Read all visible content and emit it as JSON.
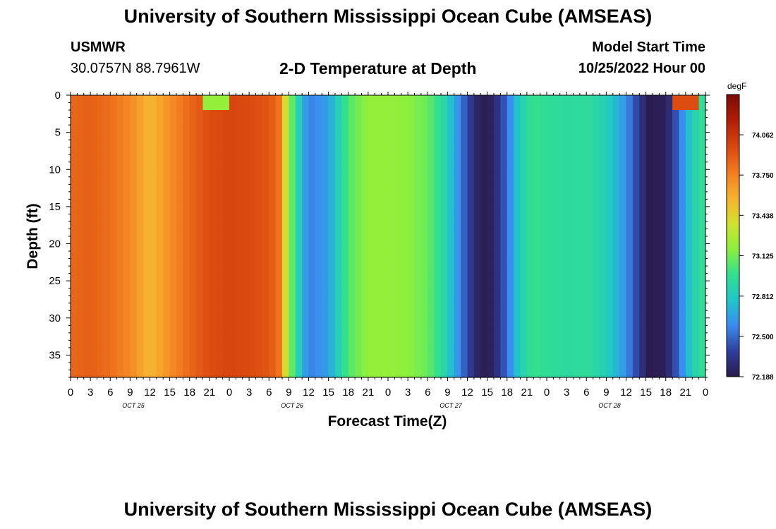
{
  "page": {
    "title_top": "University of Southern Mississippi Ocean Cube (AMSEAS)",
    "title_bottom": "University of Southern Mississippi Ocean Cube (AMSEAS)",
    "station": "USMWR",
    "coords": "30.0757N  88.7961W",
    "subtitle": "2-D Temperature at Depth",
    "model_label": "Model Start Time",
    "model_date": "10/25/2022 Hour 00"
  },
  "chart_data": {
    "type": "heatmap",
    "xlabel": "Forecast Time(Z)",
    "ylabel": "Depth (ft)",
    "x_tick_labels": [
      "0",
      "3",
      "6",
      "9",
      "12",
      "15",
      "18",
      "21",
      "0",
      "3",
      "6",
      "9",
      "12",
      "15",
      "18",
      "21",
      "0",
      "3",
      "6",
      "9",
      "12",
      "15",
      "18",
      "21",
      "0",
      "3",
      "6",
      "9",
      "12",
      "15",
      "18",
      "21",
      "0"
    ],
    "date_labels": [
      "OCT 25",
      "OCT 26",
      "OCT 27",
      "OCT 28"
    ],
    "xlim_hours": [
      0,
      96
    ],
    "y_ticks": [
      0,
      5,
      10,
      15,
      20,
      25,
      30,
      35
    ],
    "ylim": [
      38,
      0
    ],
    "colorbar": {
      "unit": "degF",
      "labels": [
        "74.062",
        "73.750",
        "73.438",
        "73.125",
        "72.812",
        "72.500",
        "72.188"
      ],
      "min": 72.188,
      "max": 74.374,
      "colors": [
        "#2a1a4a",
        "#2f3f9e",
        "#3b8cf0",
        "#1fc7c8",
        "#33e08e",
        "#8ef03c",
        "#d4e030",
        "#f7b030",
        "#f27a1f",
        "#d8460f",
        "#b01e06",
        "#7a0a04"
      ]
    },
    "surface_temperature_by_hour": [
      [
        0,
        73.85
      ],
      [
        3,
        73.88
      ],
      [
        6,
        73.82
      ],
      [
        9,
        73.72
      ],
      [
        12,
        73.55
      ],
      [
        15,
        73.7
      ],
      [
        18,
        73.85
      ],
      [
        21,
        73.95
      ],
      [
        24,
        73.98
      ],
      [
        27,
        73.96
      ],
      [
        30,
        73.92
      ],
      [
        31.5,
        73.8
      ],
      [
        33,
        73.2
      ],
      [
        34.5,
        72.85
      ],
      [
        36,
        72.55
      ],
      [
        39,
        72.65
      ],
      [
        42,
        73.05
      ],
      [
        45,
        73.2
      ],
      [
        48,
        73.2
      ],
      [
        51,
        73.18
      ],
      [
        54,
        73.1
      ],
      [
        56,
        72.95
      ],
      [
        58,
        72.7
      ],
      [
        60,
        72.4
      ],
      [
        62,
        72.2
      ],
      [
        64,
        72.25
      ],
      [
        66,
        72.5
      ],
      [
        68,
        72.85
      ],
      [
        70,
        73.0
      ],
      [
        72,
        72.95
      ],
      [
        75,
        72.92
      ],
      [
        78,
        72.95
      ],
      [
        81,
        72.85
      ],
      [
        84,
        72.6
      ],
      [
        86,
        72.35
      ],
      [
        87.5,
        72.2
      ],
      [
        90,
        72.22
      ],
      [
        92,
        72.5
      ],
      [
        94,
        72.85
      ],
      [
        96,
        73.0
      ]
    ],
    "surface_anomaly_patches": [
      {
        "hour": 22,
        "depth_max_ft": 3,
        "value": 73.2
      },
      {
        "hour": 93,
        "depth_max_ft": 3,
        "value": 73.95
      }
    ]
  }
}
